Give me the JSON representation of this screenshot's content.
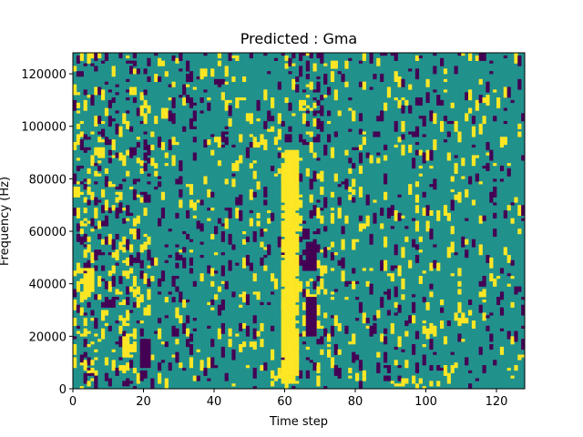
{
  "chart_data": {
    "type": "heatmap",
    "title": "Predicted : Gma",
    "xlabel": "Time step",
    "ylabel": "Frequency (Hz)",
    "xlim": [
      0,
      128
    ],
    "ylim": [
      0,
      128000
    ],
    "xticks": [
      0,
      20,
      40,
      60,
      80,
      100,
      120
    ],
    "yticks": [
      0,
      20000,
      40000,
      60000,
      80000,
      100000,
      120000
    ],
    "grid": false,
    "legend": "none",
    "colormap": {
      "-1": "#440154",
      "0": "#21918c",
      "1": "#fde725"
    },
    "grid_size": {
      "cols": 128,
      "rows": 128
    },
    "background_value": 0,
    "cells": [
      {
        "x": 2,
        "y": 20,
        "value": 1
      },
      {
        "x": 3,
        "y": 20,
        "value": 1
      },
      {
        "x": 2,
        "y": 9,
        "value": 1
      },
      {
        "x": 3,
        "y": 9,
        "value": 1
      },
      {
        "x": 4,
        "y": 6,
        "value": 1
      },
      {
        "x": 5,
        "y": 6,
        "value": 1
      },
      {
        "x": 4,
        "y": 16,
        "value": 1
      },
      {
        "x": 5,
        "y": 17,
        "value": 1
      },
      {
        "x": 6,
        "y": 14,
        "value": 1
      },
      {
        "x": 7,
        "y": 18,
        "value": 1
      },
      {
        "x": 5,
        "y": 5,
        "value": -1
      },
      {
        "x": 6,
        "y": 4,
        "value": -1
      },
      {
        "x": 20,
        "y": 14,
        "value": -1
      },
      {
        "x": 21,
        "y": 12,
        "value": -1
      },
      {
        "x": 60,
        "y": 5,
        "value": 1
      },
      {
        "x": 61,
        "y": 6,
        "value": 1
      },
      {
        "x": 67,
        "y": 10,
        "value": -1
      },
      {
        "x": 68,
        "y": 9,
        "value": -1
      },
      {
        "x": 90,
        "y": 2,
        "value": 1
      },
      {
        "x": 91,
        "y": 1,
        "value": 1
      }
    ],
    "column_bands": [
      {
        "x_start": 59,
        "x_end": 63,
        "y_start": 2,
        "y_end": 90,
        "value": 1
      },
      {
        "x_start": 66,
        "x_end": 68,
        "y_start": 20,
        "y_end": 34,
        "value": -1
      },
      {
        "x_start": 66,
        "x_end": 68,
        "y_start": 45,
        "y_end": 55,
        "value": -1
      },
      {
        "x_start": 19,
        "x_end": 21,
        "y_start": 8,
        "y_end": 18,
        "value": -1
      },
      {
        "x_start": 3,
        "x_end": 5,
        "y_start": 35,
        "y_end": 45,
        "value": 1
      },
      {
        "x_start": 14,
        "x_end": 16,
        "y_start": 12,
        "y_end": 20,
        "value": 1
      }
    ],
    "sparse_seed": 7
  }
}
